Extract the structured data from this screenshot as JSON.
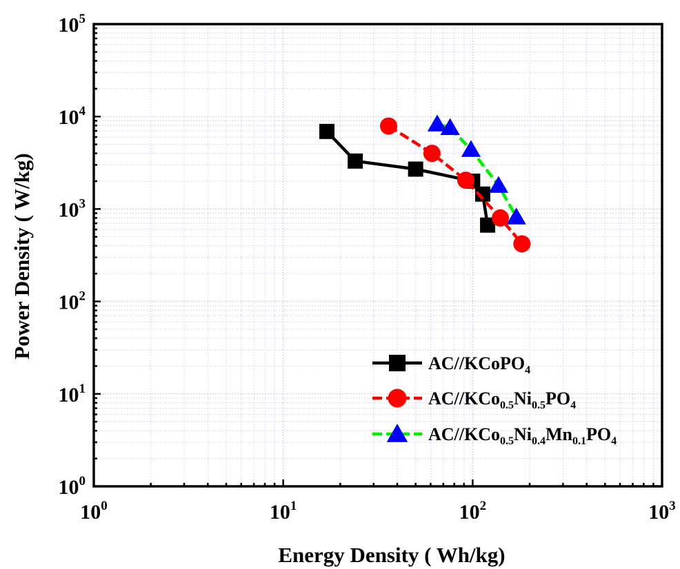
{
  "chart_data": {
    "type": "line",
    "xlabel": "Energy Density ( Wh/kg)",
    "ylabel": "Power Density ( W/kg)",
    "xscale": "log",
    "yscale": "log",
    "xlim": [
      1,
      1000
    ],
    "ylim": [
      1,
      100000
    ],
    "xticks": [
      {
        "base": "10",
        "exp": "0",
        "value": 1
      },
      {
        "base": "10",
        "exp": "1",
        "value": 10
      },
      {
        "base": "10",
        "exp": "2",
        "value": 100
      },
      {
        "base": "10",
        "exp": "3",
        "value": 1000
      }
    ],
    "yticks": [
      {
        "base": "10",
        "exp": "0",
        "value": 1
      },
      {
        "base": "10",
        "exp": "1",
        "value": 10
      },
      {
        "base": "10",
        "exp": "2",
        "value": 100
      },
      {
        "base": "10",
        "exp": "3",
        "value": 1000
      },
      {
        "base": "10",
        "exp": "4",
        "value": 10000
      },
      {
        "base": "10",
        "exp": "5",
        "value": 100000
      }
    ],
    "grid": true,
    "legend_position": "bottom-right",
    "series": [
      {
        "name": "AC//KCoPO4",
        "label_parts": [
          {
            "t": "AC//KCoPO"
          },
          {
            "t": "4",
            "sub": true
          }
        ],
        "color": "#000000",
        "marker": "square",
        "dash": "solid",
        "x": [
          17,
          24,
          50,
          100,
          113,
          120
        ],
        "y": [
          6900,
          3300,
          2700,
          2000,
          1450,
          670
        ]
      },
      {
        "name": "AC//KCo0.5Ni0.5PO4",
        "label_parts": [
          {
            "t": "AC//KCo"
          },
          {
            "t": "0.5",
            "sub": true
          },
          {
            "t": "Ni"
          },
          {
            "t": "0.5",
            "sub": true
          },
          {
            "t": "PO"
          },
          {
            "t": "4",
            "sub": true
          }
        ],
        "color": "#ff0000",
        "marker": "circle",
        "dash": "dashed",
        "x": [
          36,
          61,
          92,
          140,
          182
        ],
        "y": [
          7900,
          4000,
          2050,
          800,
          420
        ]
      },
      {
        "name": "AC//KCo0.5Ni0.4Mn0.1PO4",
        "label_parts": [
          {
            "t": "AC//KCo"
          },
          {
            "t": "0.5",
            "sub": true
          },
          {
            "t": "Ni"
          },
          {
            "t": "0.4",
            "sub": true
          },
          {
            "t": "Mn"
          },
          {
            "t": "0.1",
            "sub": true
          },
          {
            "t": "PO"
          },
          {
            "t": "4",
            "sub": true
          }
        ],
        "color": "#00ee00",
        "marker_color": "#0000ff",
        "marker": "triangle",
        "dash": "dashed",
        "x": [
          65,
          76,
          98,
          137,
          170
        ],
        "y": [
          8300,
          7600,
          4400,
          1800,
          820
        ]
      }
    ]
  }
}
